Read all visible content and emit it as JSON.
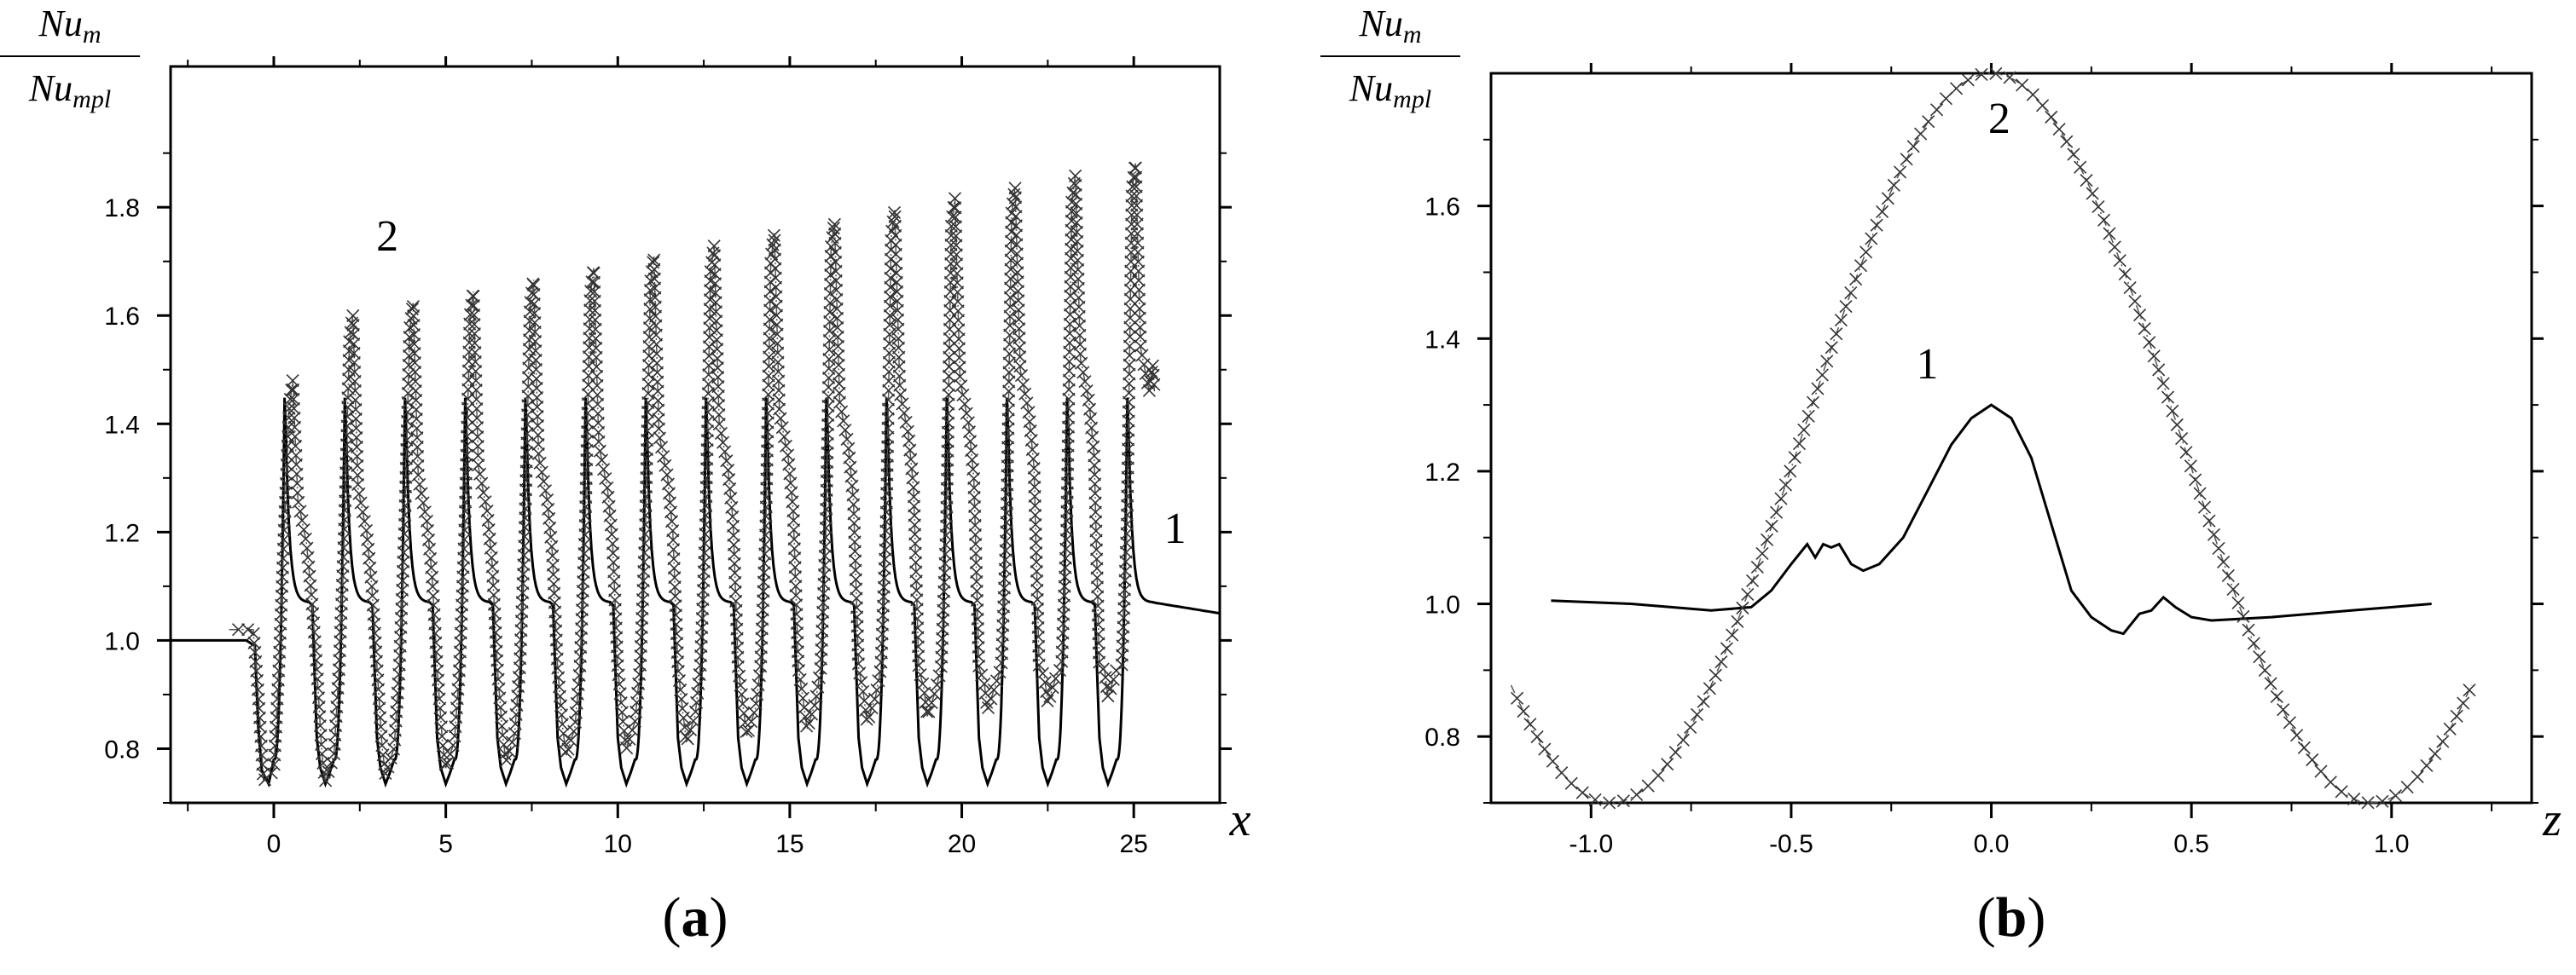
{
  "chart_data": [
    {
      "type": "line",
      "panel_label": {
        "open": "(",
        "letter": "a",
        "close": ")"
      },
      "ylabel": {
        "num_base": "Nu",
        "num_sub": "m",
        "den_base": "Nu",
        "den_sub": "mpl"
      },
      "xlabel": "x",
      "xlim": [
        -3,
        27.5
      ],
      "ylim": [
        0.7,
        2.06
      ],
      "xticks": [
        0,
        5,
        10,
        15,
        20,
        25
      ],
      "xtick_labels": [
        "0",
        "5",
        "10",
        "15",
        "20",
        "25"
      ],
      "yticks": [
        0.8,
        1.0,
        1.2,
        1.4,
        1.6,
        1.8
      ],
      "ytick_labels": [
        "0.8",
        "1.0",
        "1.2",
        "1.4",
        "1.6",
        "1.8"
      ],
      "series": [
        {
          "name": "1",
          "style": "solid",
          "description": "periodic response over ribs starting at x=0 with period ~1.75",
          "baseline": 1.0,
          "period": 1.75,
          "n_periods": 15,
          "peak_value": 1.48,
          "plateau_value": 1.07,
          "min_value": 0.735,
          "tail_end_value": 1.05,
          "x_end": 27.5
        },
        {
          "name": "2",
          "style": "crosses",
          "description": "periodic cross-marked response; peaks grow linearly",
          "baseline": 1.02,
          "period": 1.75,
          "n_periods": 15,
          "first_peak": 1.48,
          "peak_growth": 0.0215,
          "first_plateau": 1.18,
          "plateau_growth": 0.02,
          "first_min": 0.74,
          "min_growth": 0.012,
          "final_drop_value": 1.46
        }
      ],
      "annotations": [
        {
          "text": "2",
          "x": 3.3,
          "y": 1.72
        },
        {
          "text": "1",
          "x": 26.2,
          "y": 1.18
        }
      ]
    },
    {
      "type": "line",
      "panel_label": {
        "open": "(",
        "letter": "b",
        "close": ")"
      },
      "ylabel": {
        "num_base": "Nu",
        "num_sub": "m",
        "den_base": "Nu",
        "den_sub": "mpl"
      },
      "xlabel": "z",
      "xlim": [
        -1.25,
        1.35
      ],
      "ylim": [
        0.7,
        1.8
      ],
      "xticks": [
        -1.0,
        -0.5,
        0.0,
        0.5,
        1.0
      ],
      "xtick_labels": [
        "-1.0",
        "-0.5",
        "0.0",
        "0.5",
        "1.0"
      ],
      "yticks": [
        0.8,
        1.0,
        1.2,
        1.4,
        1.6
      ],
      "ytick_labels": [
        "0.8",
        "1.0",
        "1.2",
        "1.4",
        "1.6"
      ],
      "series": [
        {
          "name": "1",
          "style": "solid",
          "x": [
            -1.1,
            -0.9,
            -0.7,
            -0.6,
            -0.55,
            -0.5,
            -0.46,
            -0.44,
            -0.42,
            -0.4,
            -0.38,
            -0.35,
            -0.32,
            -0.28,
            -0.22,
            -0.16,
            -0.1,
            -0.05,
            0.0,
            0.05,
            0.1,
            0.15,
            0.2,
            0.25,
            0.3,
            0.33,
            0.37,
            0.4,
            0.43,
            0.46,
            0.5,
            0.55,
            0.7,
            0.9,
            1.1
          ],
          "y": [
            1.005,
            1.0,
            0.99,
            0.995,
            1.02,
            1.06,
            1.09,
            1.07,
            1.09,
            1.085,
            1.09,
            1.06,
            1.05,
            1.06,
            1.1,
            1.17,
            1.24,
            1.28,
            1.3,
            1.28,
            1.22,
            1.12,
            1.02,
            0.98,
            0.96,
            0.955,
            0.985,
            0.99,
            1.01,
            0.995,
            0.98,
            0.975,
            0.98,
            0.99,
            1.0
          ]
        },
        {
          "name": "2",
          "style": "crosses",
          "description": "cosine-like profile",
          "x_start": -1.2,
          "x_end": 1.2,
          "mean": 1.25,
          "amplitude": 0.55,
          "min_value": 0.72,
          "max_value": 1.8
        }
      ],
      "annotations": [
        {
          "text": "2",
          "x": 0.02,
          "y": 1.71
        },
        {
          "text": "1",
          "x": -0.16,
          "y": 1.34
        }
      ]
    }
  ]
}
